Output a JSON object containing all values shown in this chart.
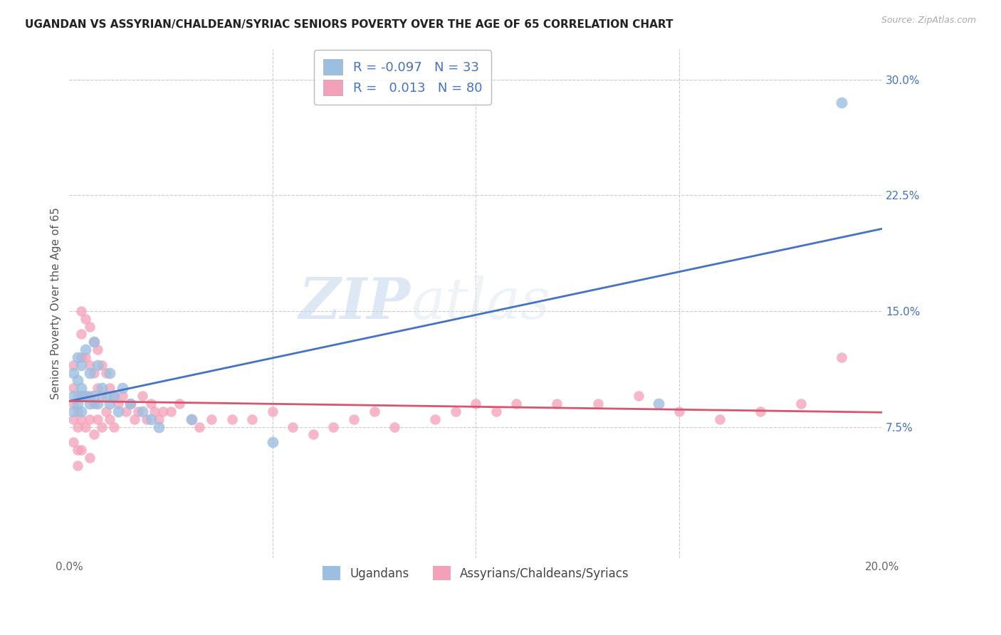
{
  "title": "UGANDAN VS ASSYRIAN/CHALDEAN/SYRIAC SENIORS POVERTY OVER THE AGE OF 65 CORRELATION CHART",
  "source": "Source: ZipAtlas.com",
  "ylabel": "Seniors Poverty Over the Age of 65",
  "xlim": [
    0.0,
    0.2
  ],
  "ylim": [
    -0.01,
    0.32
  ],
  "xticks": [
    0.0,
    0.05,
    0.1,
    0.15,
    0.2
  ],
  "xticklabels": [
    "0.0%",
    "",
    "",
    "",
    "20.0%"
  ],
  "yticks_right": [
    0.075,
    0.15,
    0.225,
    0.3
  ],
  "yticklabels_right": [
    "7.5%",
    "15.0%",
    "22.5%",
    "30.0%"
  ],
  "ugandan_color": "#9bbfe0",
  "assyrian_color": "#f4a0b8",
  "ugandan_line_color": "#4472c4",
  "assyrian_line_color": "#d9546e",
  "legend_R_ugandan": "-0.097",
  "legend_N_ugandan": "33",
  "legend_R_assyrian": "0.013",
  "legend_N_assyrian": "80",
  "legend_label_ugandan": "Ugandans",
  "legend_label_assyrian": "Assyrians/Chaldeans/Syriacs",
  "watermark_zip": "ZIP",
  "watermark_atlas": "atlas",
  "ugandan_x": [
    0.001,
    0.001,
    0.001,
    0.002,
    0.002,
    0.002,
    0.003,
    0.003,
    0.003,
    0.003,
    0.004,
    0.004,
    0.005,
    0.005,
    0.006,
    0.006,
    0.007,
    0.007,
    0.008,
    0.009,
    0.01,
    0.01,
    0.011,
    0.012,
    0.013,
    0.015,
    0.018,
    0.02,
    0.022,
    0.03,
    0.05,
    0.145,
    0.19
  ],
  "ugandan_y": [
    0.11,
    0.095,
    0.085,
    0.12,
    0.105,
    0.09,
    0.115,
    0.1,
    0.095,
    0.085,
    0.125,
    0.095,
    0.11,
    0.09,
    0.13,
    0.095,
    0.115,
    0.09,
    0.1,
    0.095,
    0.11,
    0.09,
    0.095,
    0.085,
    0.1,
    0.09,
    0.085,
    0.08,
    0.075,
    0.08,
    0.065,
    0.09,
    0.285
  ],
  "assyrian_x": [
    0.001,
    0.001,
    0.001,
    0.001,
    0.001,
    0.002,
    0.002,
    0.002,
    0.002,
    0.002,
    0.003,
    0.003,
    0.003,
    0.003,
    0.003,
    0.003,
    0.004,
    0.004,
    0.004,
    0.004,
    0.005,
    0.005,
    0.005,
    0.005,
    0.005,
    0.006,
    0.006,
    0.006,
    0.006,
    0.007,
    0.007,
    0.007,
    0.008,
    0.008,
    0.008,
    0.009,
    0.009,
    0.01,
    0.01,
    0.011,
    0.011,
    0.012,
    0.013,
    0.014,
    0.015,
    0.016,
    0.017,
    0.018,
    0.019,
    0.02,
    0.021,
    0.022,
    0.023,
    0.025,
    0.027,
    0.03,
    0.032,
    0.035,
    0.04,
    0.045,
    0.05,
    0.055,
    0.06,
    0.065,
    0.07,
    0.075,
    0.08,
    0.09,
    0.095,
    0.1,
    0.105,
    0.11,
    0.12,
    0.13,
    0.14,
    0.15,
    0.16,
    0.17,
    0.18,
    0.19
  ],
  "assyrian_y": [
    0.115,
    0.1,
    0.09,
    0.08,
    0.065,
    0.095,
    0.085,
    0.075,
    0.06,
    0.05,
    0.15,
    0.135,
    0.12,
    0.095,
    0.08,
    0.06,
    0.145,
    0.12,
    0.095,
    0.075,
    0.14,
    0.115,
    0.095,
    0.08,
    0.055,
    0.13,
    0.11,
    0.09,
    0.07,
    0.125,
    0.1,
    0.08,
    0.115,
    0.095,
    0.075,
    0.11,
    0.085,
    0.1,
    0.08,
    0.095,
    0.075,
    0.09,
    0.095,
    0.085,
    0.09,
    0.08,
    0.085,
    0.095,
    0.08,
    0.09,
    0.085,
    0.08,
    0.085,
    0.085,
    0.09,
    0.08,
    0.075,
    0.08,
    0.08,
    0.08,
    0.085,
    0.075,
    0.07,
    0.075,
    0.08,
    0.085,
    0.075,
    0.08,
    0.085,
    0.09,
    0.085,
    0.09,
    0.09,
    0.09,
    0.095,
    0.085,
    0.08,
    0.085,
    0.09,
    0.12
  ]
}
